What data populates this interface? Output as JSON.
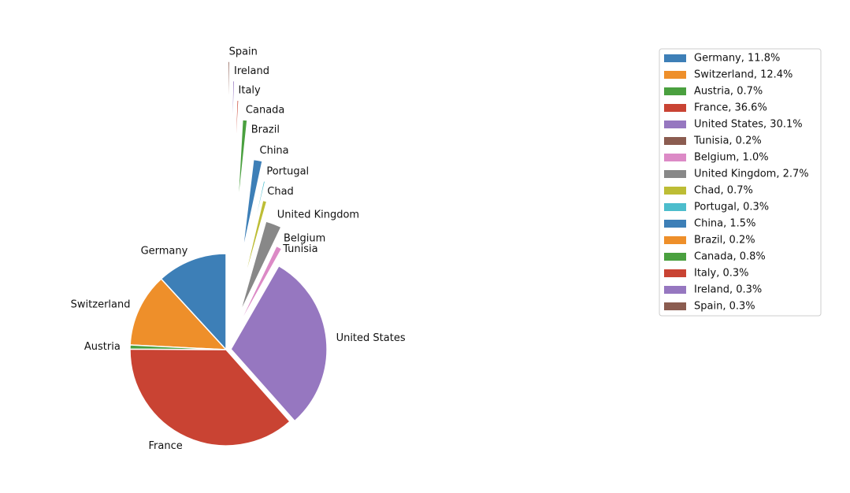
{
  "chart_data": {
    "type": "pie",
    "categories": [
      "Germany",
      "Switzerland",
      "Austria",
      "France",
      "United States",
      "Tunisia",
      "Belgium",
      "United Kingdom",
      "Chad",
      "Portugal",
      "China",
      "Brazil",
      "Canada",
      "Italy",
      "Ireland",
      "Spain"
    ],
    "values": [
      11.8,
      12.4,
      0.7,
      36.6,
      30.1,
      0.2,
      1.0,
      2.7,
      0.7,
      0.3,
      1.5,
      0.2,
      0.8,
      0.3,
      0.3,
      0.3
    ],
    "legend_labels": [
      "Germany, 11.8%",
      "Switzerland, 12.4%",
      "Austria, 0.7%",
      "France, 36.6%",
      "United States, 30.1%",
      "Tunisia, 0.2%",
      "Belgium, 1.0%",
      "United Kingdom, 2.7%",
      "Chad, 0.7%",
      "Portugal, 0.3%",
      "China, 1.5%",
      "Brazil, 0.2%",
      "Canada, 0.8%",
      "Italy, 0.3%",
      "Ireland, 0.3%",
      "Spain, 0.3%"
    ],
    "colors": [
      "#3d7fb7",
      "#ee8f2a",
      "#4aa03f",
      "#c94333",
      "#9677c0",
      "#8b5c50",
      "#dc8ac6",
      "#888888",
      "#bdbd35",
      "#4cbdcc",
      "#3d7fb7",
      "#ee8f2a",
      "#4aa03f",
      "#c94333",
      "#9677c0",
      "#8b5c50"
    ],
    "explode": [
      0,
      0,
      0,
      0,
      0.05,
      0.1,
      0.2,
      0.4,
      0.6,
      0.8,
      1.0,
      1.2,
      1.4,
      1.6,
      1.8,
      2.0
    ],
    "startangle": 90,
    "legend": "upper right"
  }
}
